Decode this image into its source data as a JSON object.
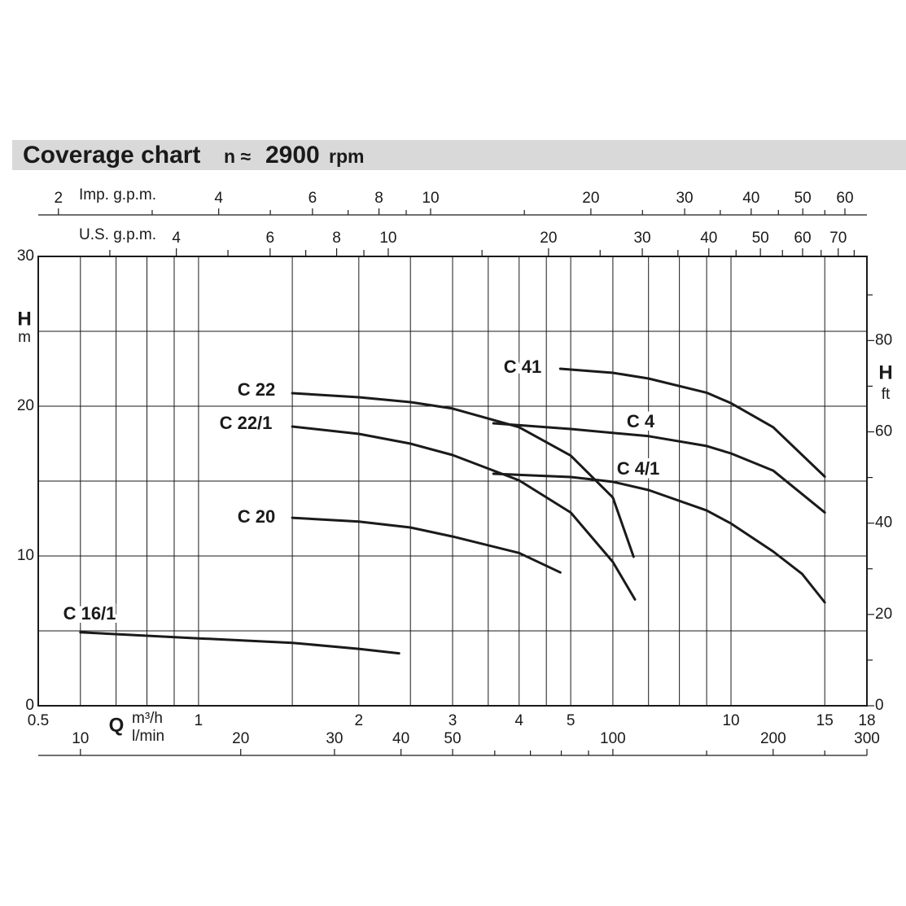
{
  "chart_data": {
    "type": "line",
    "title": "Coverage chart",
    "subtitle_prefix": "n ≈",
    "subtitle_speed": "2900",
    "subtitle_unit": "rpm",
    "x_label": "Q",
    "x_unit": "m³/h",
    "y_label": "H",
    "y_unit": "m",
    "y2_label": "H",
    "y2_unit": "ft",
    "xscale": "log",
    "xlim": [
      0.5,
      18
    ],
    "xticks": [
      0.5,
      1,
      2,
      3,
      4,
      5,
      10,
      15,
      18
    ],
    "xgrid": [
      0.6,
      0.7,
      0.8,
      0.9,
      1,
      1.5,
      2,
      2.5,
      3,
      3.5,
      4,
      4.5,
      5,
      6,
      7,
      8,
      9,
      10,
      15
    ],
    "ylim": [
      0,
      30
    ],
    "yticks": [
      0,
      10,
      20,
      30
    ],
    "ygrid": [
      5,
      10,
      15,
      20,
      25
    ],
    "y2lim": [
      0,
      98.425
    ],
    "y2ticks": [
      0,
      20,
      40,
      60,
      80
    ],
    "y2minorticks": [
      10,
      30,
      50,
      70,
      90
    ],
    "extra_x_axes": [
      {
        "label": "Imp. g.p.m.",
        "position": "top",
        "lim": [
          1.833,
          65.99
        ],
        "ticks": [
          2,
          4,
          6,
          8,
          10,
          20,
          30,
          40,
          50,
          60
        ],
        "minor_ticks": [
          3,
          5,
          7,
          9,
          15,
          25,
          35,
          45,
          55
        ]
      },
      {
        "label": "U.S. g.p.m.",
        "position": "top-inner",
        "lim": [
          2.2015,
          79.25
        ],
        "ticks": [
          4,
          6,
          8,
          10,
          20,
          30,
          40,
          50,
          60,
          70
        ],
        "minor_ticks": [
          3,
          5,
          7,
          9,
          15,
          25,
          35,
          45,
          55,
          65,
          75
        ]
      },
      {
        "label": "l/min",
        "position": "bottom",
        "lim": [
          8.333,
          300
        ],
        "ticks": [
          10,
          20,
          30,
          40,
          50,
          100,
          200,
          300
        ],
        "minor_ticks": [
          60,
          70,
          80,
          90,
          150,
          250
        ]
      }
    ],
    "series": [
      {
        "name": "C 16/1",
        "color": "#1a1a1a",
        "x": [
          0.6,
          1,
          1.5,
          2,
          2.38
        ],
        "values": [
          4.9,
          4.5,
          4.2,
          3.8,
          3.5
        ]
      },
      {
        "name": "C 20",
        "color": "#1a1a1a",
        "x": [
          1.5,
          2,
          2.5,
          3,
          4,
          4.78
        ],
        "values": [
          12.55,
          12.3,
          11.9,
          11.3,
          10.2,
          8.9
        ]
      },
      {
        "name": "C 22",
        "color": "#1a1a1a",
        "x": [
          1.5,
          2,
          2.5,
          3,
          4,
          5,
          6,
          6.56
        ],
        "values": [
          20.87,
          20.6,
          20.27,
          19.84,
          18.6,
          16.7,
          13.9,
          9.95
        ]
      },
      {
        "name": "C 22/1",
        "color": "#1a1a1a",
        "x": [
          1.5,
          2,
          2.5,
          3,
          4,
          5,
          6,
          6.6
        ],
        "values": [
          18.64,
          18.15,
          17.5,
          16.74,
          15.05,
          12.9,
          9.6,
          7.1
        ]
      },
      {
        "name": "C 41",
        "color": "#1a1a1a",
        "x": [
          4.78,
          6,
          7,
          9,
          10,
          12,
          15
        ],
        "values": [
          22.5,
          22.23,
          21.85,
          20.9,
          20.2,
          18.6,
          15.3
        ]
      },
      {
        "name": "C 4",
        "color": "#1a1a1a",
        "x": [
          3.58,
          5,
          7,
          9,
          10,
          12,
          15
        ],
        "values": [
          18.86,
          18.48,
          18.0,
          17.34,
          16.85,
          15.7,
          12.9
        ]
      },
      {
        "name": "C 4/1",
        "color": "#1a1a1a",
        "x": [
          3.58,
          5,
          6,
          7,
          9,
          10,
          12,
          13.6,
          15
        ],
        "values": [
          15.49,
          15.27,
          14.95,
          14.4,
          13.04,
          12.17,
          10.3,
          8.8,
          6.9
        ]
      }
    ]
  }
}
